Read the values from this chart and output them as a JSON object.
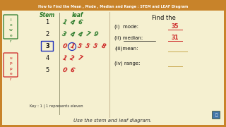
{
  "bg_outer": "#c8832a",
  "bg_inner": "#f5f0d0",
  "title_top": "How to Find the Mean , Mode , Median and Range : STEM and LEAF Diagram",
  "bottom_text": "Use the stem and leaf diagram.",
  "key_text": "Key : 1 | 1 represents eleven",
  "stems": [
    1,
    2,
    3,
    4,
    5
  ],
  "leaves_green": {
    "1": [
      "1",
      "4",
      "6"
    ],
    "2": [
      "3",
      "4",
      "4",
      "7",
      "9"
    ]
  },
  "leaves_red": {
    "3": [
      "0",
      "1",
      "5",
      "5",
      "5",
      "8"
    ],
    "4": [
      "1",
      "2",
      "7"
    ],
    "5": [
      "0",
      "6"
    ]
  },
  "find_the_text": "Find the",
  "q1": "(i)  mode:",
  "q2": "(ii) median:",
  "q3": "(iii)mean:",
  "q4": "(iv) range:",
  "ans1": "35",
  "ans2": "31",
  "green": "#2a7a2a",
  "red": "#cc2222",
  "blue": "#2233bb",
  "tan": "#c8a850",
  "black": "#111111",
  "stem3_box": "#2233bb",
  "circle_leaf_idx": 1,
  "circle_stem": "3"
}
